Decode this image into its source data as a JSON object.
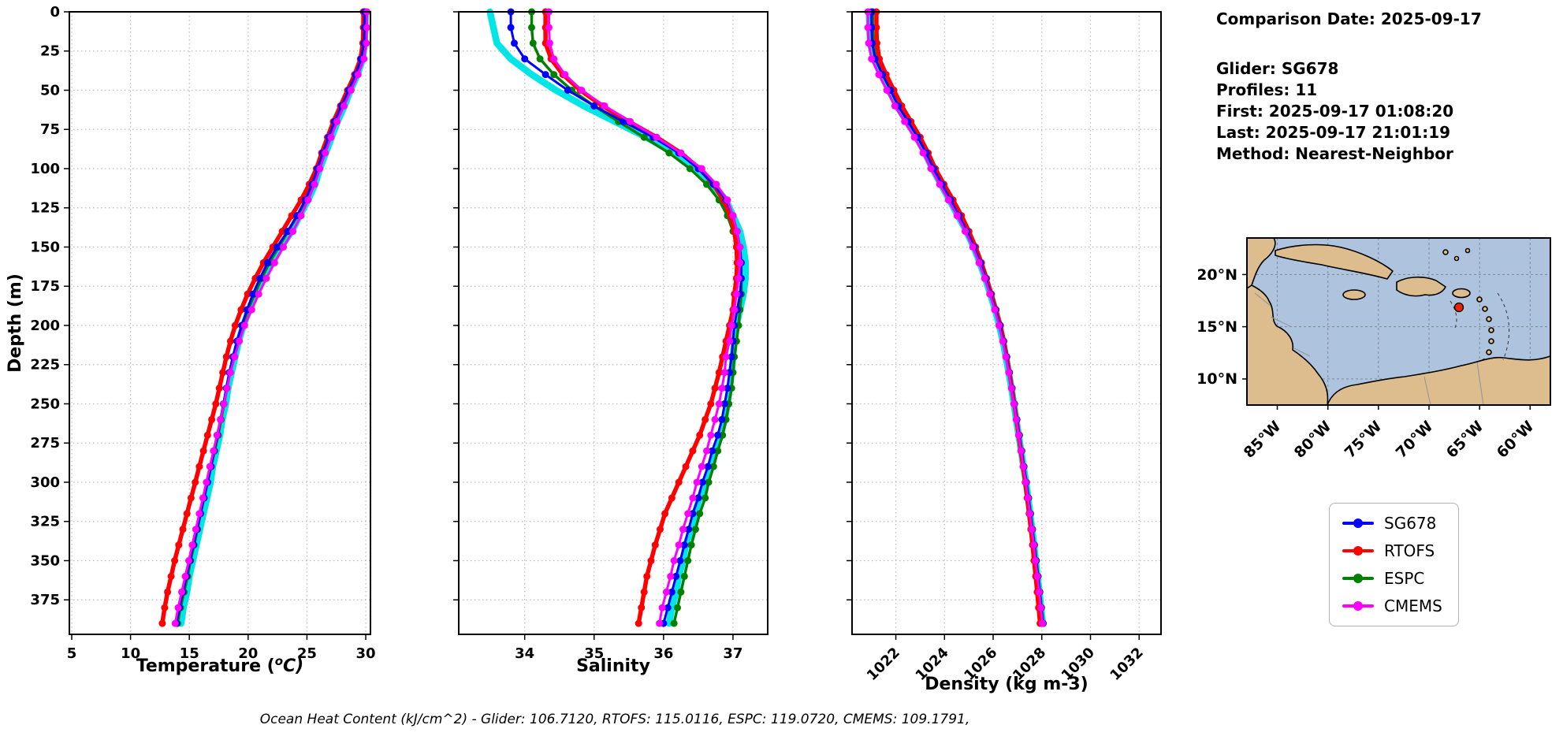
{
  "info_panel": {
    "comparison_date": "Comparison Date: 2025-09-17",
    "lines": [
      "Glider: SG678",
      "Profiles: 11",
      "First: 2025-09-17 01:08:20",
      "Last: 2025-09-17 21:01:19",
      "Method: Nearest-Neighbor"
    ]
  },
  "legend": {
    "items": [
      {
        "label": "SG678",
        "color": "#0000ff"
      },
      {
        "label": "RTOFS",
        "color": "#ff0000"
      },
      {
        "label": "ESPC",
        "color": "#008000"
      },
      {
        "label": "CMEMS",
        "color": "#ff00ff"
      }
    ]
  },
  "map": {
    "lat_ticks": [
      "20°N",
      "15°N",
      "10°N"
    ],
    "lon_ticks": [
      "85°W",
      "80°W",
      "75°W",
      "70°W",
      "65°W",
      "60°W"
    ],
    "marker_color": "#ee2200",
    "water_color": "#aec3de",
    "land_color": "#ddbd8d"
  },
  "footer": "Ocean Heat Content (kJ/cm^2) - Glider: 106.7120,  RTOFS: 115.0116,  ESPC: 119.0720,  CMEMS: 109.1791,",
  "chart_data": [
    {
      "type": "line",
      "title": "Temperature profile comparison",
      "xlabel": "Temperature (°C)",
      "xlabel_parts": {
        "pre": "Temperature (",
        "sup": "o",
        "post": "C)"
      },
      "ylabel": "Depth (m)",
      "xlim": [
        4.8,
        30.4
      ],
      "xticks": [
        5,
        10,
        15,
        20,
        25,
        30
      ],
      "ylim": [
        0,
        397
      ],
      "yticks": [
        0,
        25,
        50,
        75,
        100,
        125,
        150,
        175,
        200,
        225,
        250,
        275,
        300,
        325,
        350,
        375
      ],
      "rotate_xticks": false,
      "grid": true,
      "depths": [
        0,
        10,
        20,
        30,
        40,
        50,
        60,
        70,
        80,
        90,
        100,
        110,
        120,
        130,
        140,
        150,
        160,
        170,
        180,
        190,
        200,
        210,
        220,
        230,
        240,
        250,
        260,
        270,
        280,
        290,
        300,
        310,
        320,
        330,
        340,
        350,
        360,
        370,
        380,
        390
      ],
      "series": [
        {
          "name": "Glider profiles (raw)",
          "color": "#00e5e5",
          "width": 8.5,
          "marker": false,
          "values": [
            30.0,
            29.95,
            29.9,
            29.75,
            29.3,
            28.7,
            28.2,
            27.6,
            27.1,
            26.6,
            26.1,
            25.7,
            25.1,
            24.4,
            23.7,
            22.8,
            22.0,
            21.3,
            20.7,
            20.1,
            19.6,
            19.2,
            18.9,
            18.6,
            18.3,
            18.1,
            17.8,
            17.6,
            17.3,
            17.0,
            16.8,
            16.5,
            16.2,
            15.9,
            15.6,
            15.3,
            15.0,
            14.8,
            14.5,
            14.3
          ]
        },
        {
          "name": "ESPC",
          "color": "#008000",
          "width": 3.5,
          "marker": true,
          "values": [
            29.9,
            29.9,
            29.8,
            29.6,
            29.1,
            28.5,
            27.95,
            27.4,
            26.9,
            26.45,
            26.0,
            25.5,
            24.9,
            24.2,
            23.4,
            22.6,
            21.8,
            21.15,
            20.55,
            20.0,
            19.5,
            19.1,
            18.75,
            18.45,
            18.2,
            17.95,
            17.7,
            17.45,
            17.15,
            16.85,
            16.55,
            16.25,
            15.95,
            15.7,
            15.4,
            15.1,
            14.85,
            14.55,
            14.25,
            14.0
          ]
        },
        {
          "name": "RTOFS",
          "color": "#ff0000",
          "width": 5.5,
          "marker": true,
          "values": [
            29.8,
            29.8,
            29.75,
            29.55,
            29.05,
            28.45,
            27.85,
            27.25,
            26.75,
            26.25,
            25.8,
            25.2,
            24.5,
            23.7,
            22.9,
            22.1,
            21.3,
            20.6,
            19.95,
            19.4,
            18.9,
            18.5,
            18.15,
            17.85,
            17.55,
            17.25,
            16.9,
            16.55,
            16.2,
            15.85,
            15.5,
            15.15,
            14.8,
            14.45,
            14.1,
            13.75,
            13.45,
            13.15,
            12.9,
            12.7
          ]
        },
        {
          "name": "SG678",
          "color": "#0000ff",
          "width": 3,
          "marker": true,
          "values": [
            29.9,
            29.9,
            29.85,
            29.6,
            29.15,
            28.55,
            27.95,
            27.35,
            26.85,
            26.35,
            25.9,
            25.45,
            24.85,
            24.15,
            23.35,
            22.45,
            21.65,
            21.0,
            20.4,
            19.9,
            19.45,
            19.05,
            18.7,
            18.4,
            18.15,
            17.9,
            17.65,
            17.4,
            17.1,
            16.85,
            16.55,
            16.25,
            15.95,
            15.65,
            15.35,
            15.05,
            14.75,
            14.45,
            14.15,
            13.9
          ]
        },
        {
          "name": "CMEMS",
          "color": "#ff00ff",
          "width": 3,
          "marker": true,
          "values": [
            30.1,
            30.1,
            30.05,
            29.85,
            29.35,
            28.75,
            28.15,
            27.55,
            27.05,
            26.55,
            26.1,
            25.65,
            25.1,
            24.5,
            23.8,
            23.0,
            22.25,
            21.55,
            20.9,
            20.3,
            19.7,
            19.25,
            18.85,
            18.5,
            18.2,
            17.95,
            17.65,
            17.35,
            17.05,
            16.75,
            16.45,
            16.15,
            15.85,
            15.55,
            15.25,
            14.95,
            14.65,
            14.35,
            14.05,
            13.8
          ]
        }
      ]
    },
    {
      "type": "line",
      "title": "Salinity profile comparison",
      "xlabel": "Salinity",
      "ylabel": "Depth (m)",
      "xlim": [
        33.05,
        37.5
      ],
      "xticks": [
        34,
        35,
        36,
        37
      ],
      "ylim": [
        0,
        397
      ],
      "yticks": [
        0,
        25,
        50,
        75,
        100,
        125,
        150,
        175,
        200,
        225,
        250,
        275,
        300,
        325,
        350,
        375
      ],
      "rotate_xticks": false,
      "grid": true,
      "depths": [
        0,
        10,
        20,
        30,
        40,
        50,
        60,
        70,
        80,
        90,
        100,
        110,
        120,
        130,
        140,
        150,
        160,
        170,
        180,
        190,
        200,
        210,
        220,
        230,
        240,
        250,
        260,
        270,
        280,
        290,
        300,
        310,
        320,
        330,
        340,
        350,
        360,
        370,
        380,
        390
      ],
      "series": [
        {
          "name": "Glider profiles (raw)",
          "color": "#00e5e5",
          "width": 8.5,
          "marker": false,
          "values": [
            33.5,
            33.55,
            33.6,
            33.8,
            34.1,
            34.45,
            34.85,
            35.3,
            35.75,
            36.15,
            36.45,
            36.7,
            36.9,
            37.0,
            37.1,
            37.15,
            37.18,
            37.18,
            37.15,
            37.1,
            37.05,
            37.02,
            37.0,
            36.98,
            36.95,
            36.92,
            36.88,
            36.82,
            36.75,
            36.68,
            36.6,
            36.52,
            36.45,
            36.4,
            36.32,
            36.28,
            36.22,
            36.18,
            36.12,
            36.08
          ]
        },
        {
          "name": "ESPC",
          "color": "#008000",
          "width": 3.5,
          "marker": true,
          "values": [
            34.1,
            34.1,
            34.12,
            34.22,
            34.42,
            34.68,
            35.0,
            35.35,
            35.72,
            36.08,
            36.38,
            36.62,
            36.8,
            36.92,
            37.0,
            37.06,
            37.1,
            37.12,
            37.12,
            37.1,
            37.08,
            37.05,
            37.02,
            37.0,
            36.98,
            36.94,
            36.9,
            36.85,
            36.78,
            36.72,
            36.65,
            36.6,
            36.52,
            36.46,
            36.4,
            36.35,
            36.3,
            36.25,
            36.2,
            36.15
          ]
        },
        {
          "name": "RTOFS",
          "color": "#ff0000",
          "width": 5.5,
          "marker": true,
          "values": [
            34.3,
            34.3,
            34.3,
            34.38,
            34.55,
            34.8,
            35.12,
            35.5,
            35.9,
            36.25,
            36.52,
            36.72,
            36.86,
            36.96,
            37.02,
            37.05,
            37.06,
            37.05,
            37.02,
            37.0,
            36.95,
            36.9,
            36.85,
            36.8,
            36.74,
            36.68,
            36.6,
            36.52,
            36.42,
            36.32,
            36.22,
            36.12,
            36.02,
            35.95,
            35.88,
            35.82,
            35.76,
            35.72,
            35.68,
            35.64
          ]
        },
        {
          "name": "SG678",
          "color": "#0000ff",
          "width": 3,
          "marker": true,
          "values": [
            33.8,
            33.8,
            33.85,
            34.0,
            34.3,
            34.62,
            35.0,
            35.42,
            35.85,
            36.22,
            36.5,
            36.72,
            36.9,
            37.0,
            37.06,
            37.1,
            37.12,
            37.12,
            37.1,
            37.06,
            37.02,
            37.0,
            36.98,
            36.95,
            36.92,
            36.88,
            36.84,
            36.78,
            36.7,
            36.64,
            36.56,
            36.5,
            36.42,
            36.36,
            36.3,
            36.24,
            36.18,
            36.12,
            36.06,
            36.0
          ]
        },
        {
          "name": "CMEMS",
          "color": "#ff00ff",
          "width": 3,
          "marker": true,
          "values": [
            34.35,
            34.35,
            34.36,
            34.42,
            34.58,
            34.82,
            35.15,
            35.52,
            35.9,
            36.25,
            36.55,
            36.76,
            36.92,
            37.0,
            37.06,
            37.1,
            37.1,
            37.08,
            37.05,
            37.02,
            36.98,
            36.95,
            36.9,
            36.88,
            36.84,
            36.8,
            36.74,
            36.68,
            36.62,
            36.55,
            36.48,
            36.42,
            36.35,
            36.28,
            36.22,
            36.15,
            36.1,
            36.04,
            35.98,
            35.94
          ]
        }
      ]
    },
    {
      "type": "line",
      "title": "Density profile comparison",
      "xlabel": "Density (kg m-3)",
      "ylabel": "Depth (m)",
      "xlim": [
        1020.2,
        1032.9
      ],
      "xticks": [
        1022,
        1024,
        1026,
        1028,
        1030,
        1032
      ],
      "ylim": [
        0,
        397
      ],
      "yticks": [
        0,
        25,
        50,
        75,
        100,
        125,
        150,
        175,
        200,
        225,
        250,
        275,
        300,
        325,
        350,
        375
      ],
      "rotate_xticks": true,
      "grid": true,
      "depths": [
        0,
        10,
        20,
        30,
        40,
        50,
        60,
        70,
        80,
        90,
        100,
        110,
        120,
        130,
        140,
        150,
        160,
        170,
        180,
        190,
        200,
        210,
        220,
        230,
        240,
        250,
        260,
        270,
        280,
        290,
        300,
        310,
        320,
        330,
        340,
        350,
        360,
        370,
        380,
        390
      ],
      "series": [
        {
          "name": "Glider profiles (raw)",
          "color": "#00e5e5",
          "width": 8.5,
          "marker": false,
          "values": [
            1020.9,
            1020.92,
            1020.95,
            1021.1,
            1021.4,
            1021.72,
            1022.05,
            1022.45,
            1022.85,
            1023.2,
            1023.5,
            1023.85,
            1024.2,
            1024.55,
            1024.9,
            1025.2,
            1025.45,
            1025.68,
            1025.88,
            1026.08,
            1026.25,
            1026.4,
            1026.52,
            1026.64,
            1026.75,
            1026.85,
            1026.95,
            1027.05,
            1027.15,
            1027.25,
            1027.35,
            1027.44,
            1027.52,
            1027.6,
            1027.68,
            1027.75,
            1027.82,
            1027.9,
            1027.97,
            1028.04
          ]
        },
        {
          "name": "ESPC",
          "color": "#008000",
          "width": 3.5,
          "marker": true,
          "values": [
            1021.05,
            1021.05,
            1021.08,
            1021.2,
            1021.5,
            1021.82,
            1022.15,
            1022.55,
            1022.93,
            1023.28,
            1023.58,
            1023.93,
            1024.28,
            1024.62,
            1024.94,
            1025.24,
            1025.5,
            1025.72,
            1025.92,
            1026.11,
            1026.29,
            1026.43,
            1026.56,
            1026.67,
            1026.78,
            1026.88,
            1026.98,
            1027.08,
            1027.18,
            1027.27,
            1027.37,
            1027.46,
            1027.54,
            1027.62,
            1027.7,
            1027.78,
            1027.85,
            1027.92,
            1027.99,
            1028.06
          ]
        },
        {
          "name": "RTOFS",
          "color": "#ff0000",
          "width": 5.5,
          "marker": true,
          "values": [
            1021.2,
            1021.2,
            1021.22,
            1021.32,
            1021.6,
            1021.92,
            1022.24,
            1022.62,
            1023.0,
            1023.33,
            1023.62,
            1023.98,
            1024.35,
            1024.7,
            1025.0,
            1025.28,
            1025.52,
            1025.73,
            1025.93,
            1026.12,
            1026.3,
            1026.44,
            1026.56,
            1026.67,
            1026.77,
            1026.87,
            1026.96,
            1027.05,
            1027.14,
            1027.23,
            1027.32,
            1027.4,
            1027.48,
            1027.55,
            1027.62,
            1027.68,
            1027.75,
            1027.81,
            1027.87,
            1027.93
          ]
        },
        {
          "name": "SG678",
          "color": "#0000ff",
          "width": 3,
          "marker": true,
          "values": [
            1021.0,
            1021.0,
            1021.03,
            1021.15,
            1021.45,
            1021.78,
            1022.1,
            1022.5,
            1022.9,
            1023.25,
            1023.55,
            1023.9,
            1024.25,
            1024.6,
            1024.92,
            1025.22,
            1025.48,
            1025.7,
            1025.9,
            1026.1,
            1026.28,
            1026.42,
            1026.55,
            1026.66,
            1026.77,
            1026.87,
            1026.97,
            1027.07,
            1027.17,
            1027.26,
            1027.36,
            1027.45,
            1027.53,
            1027.61,
            1027.69,
            1027.76,
            1027.84,
            1027.91,
            1027.98,
            1028.05
          ]
        },
        {
          "name": "CMEMS",
          "color": "#ff00ff",
          "width": 3,
          "marker": true,
          "values": [
            1020.85,
            1020.85,
            1020.88,
            1021.0,
            1021.3,
            1021.63,
            1021.96,
            1022.36,
            1022.76,
            1023.12,
            1023.44,
            1023.8,
            1024.16,
            1024.52,
            1024.85,
            1025.16,
            1025.42,
            1025.65,
            1025.86,
            1026.06,
            1026.24,
            1026.39,
            1026.52,
            1026.64,
            1026.75,
            1026.85,
            1026.95,
            1027.05,
            1027.15,
            1027.24,
            1027.34,
            1027.43,
            1027.51,
            1027.59,
            1027.67,
            1027.74,
            1027.82,
            1027.89,
            1027.96,
            1028.03
          ]
        }
      ]
    }
  ]
}
